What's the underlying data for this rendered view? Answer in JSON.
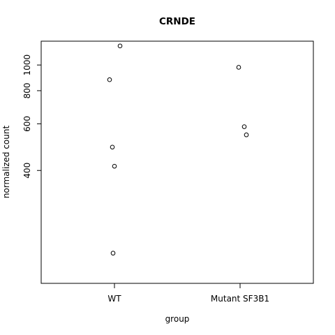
{
  "chart_data": {
    "type": "scatter",
    "title": "CRNDE",
    "xlabel": "group",
    "ylabel": "normalized count",
    "categories": [
      "WT",
      "Mutant SF3B1"
    ],
    "y_scale": "log",
    "ylim": [
      150,
      1230
    ],
    "y_ticks": [
      400,
      600,
      800,
      1000
    ],
    "y_tick_labels": [
      "400",
      "600",
      "800",
      "1000"
    ],
    "points": [
      {
        "group": "WT",
        "y": 1180
      },
      {
        "group": "WT",
        "y": 880
      },
      {
        "group": "WT",
        "y": 490
      },
      {
        "group": "WT",
        "y": 415
      },
      {
        "group": "WT",
        "y": 195
      },
      {
        "group": "Mutant SF3B1",
        "y": 980
      },
      {
        "group": "Mutant SF3B1",
        "y": 585
      },
      {
        "group": "Mutant SF3B1",
        "y": 545
      }
    ],
    "grid": false,
    "legend": "none"
  }
}
